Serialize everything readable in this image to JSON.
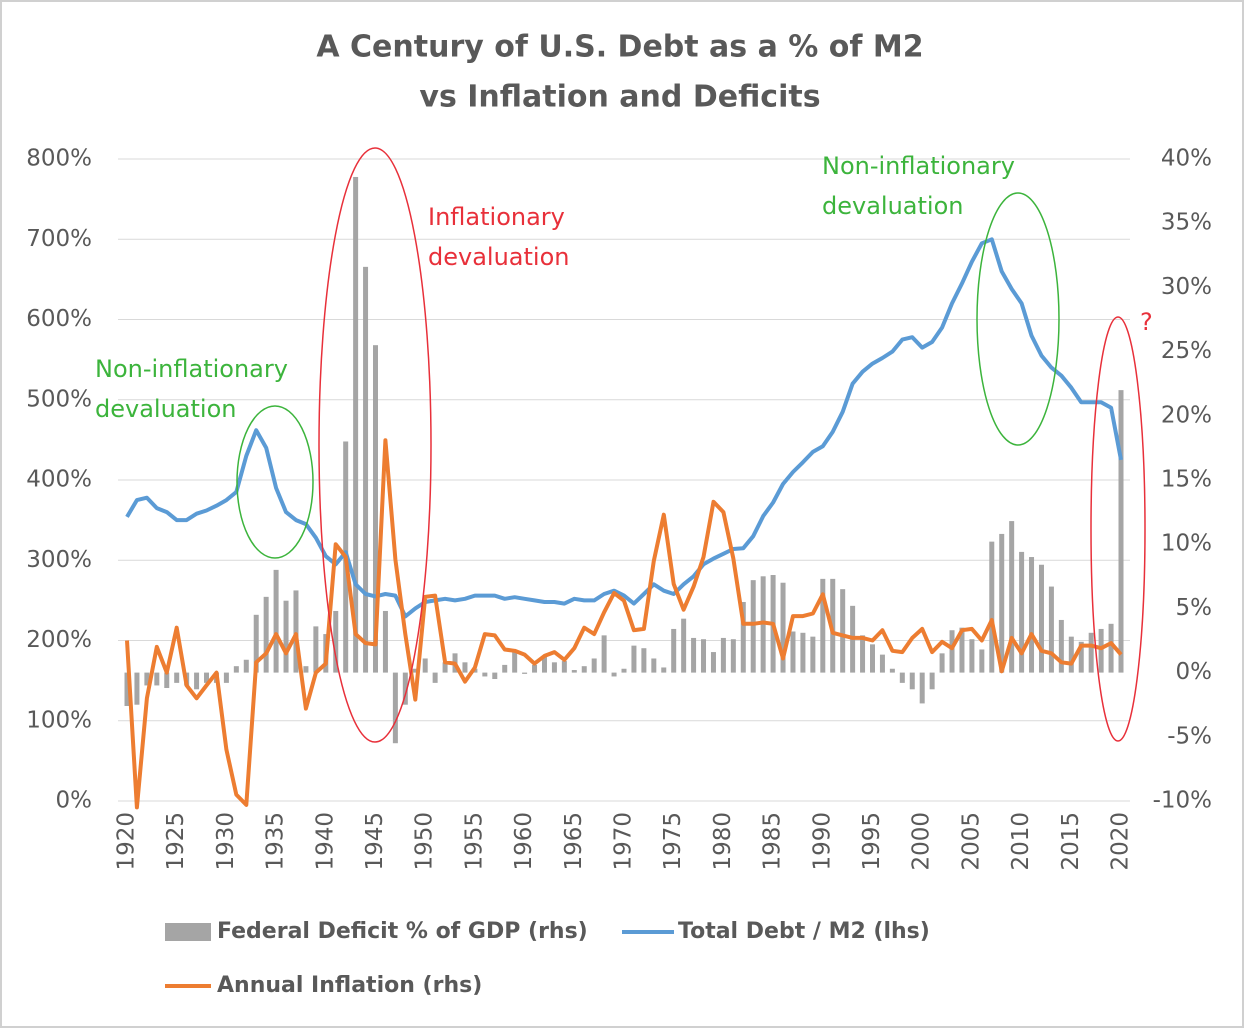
{
  "chart_data": {
    "type": "combo",
    "title": [
      "A Century of U.S. Debt as a % of M2",
      "vs Inflation and Deficits"
    ],
    "x": [
      1920,
      1921,
      1922,
      1923,
      1924,
      1925,
      1926,
      1927,
      1928,
      1929,
      1930,
      1931,
      1932,
      1933,
      1934,
      1935,
      1936,
      1937,
      1938,
      1939,
      1940,
      1941,
      1942,
      1943,
      1944,
      1945,
      1946,
      1947,
      1948,
      1949,
      1950,
      1951,
      1952,
      1953,
      1954,
      1955,
      1956,
      1957,
      1958,
      1959,
      1960,
      1961,
      1962,
      1963,
      1964,
      1965,
      1966,
      1967,
      1968,
      1969,
      1970,
      1971,
      1972,
      1973,
      1974,
      1975,
      1976,
      1977,
      1978,
      1979,
      1980,
      1981,
      1982,
      1983,
      1984,
      1985,
      1986,
      1987,
      1988,
      1989,
      1990,
      1991,
      1992,
      1993,
      1994,
      1995,
      1996,
      1997,
      1998,
      1999,
      2000,
      2001,
      2002,
      2003,
      2004,
      2005,
      2006,
      2007,
      2008,
      2009,
      2010,
      2011,
      2012,
      2013,
      2014,
      2015,
      2016,
      2017,
      2018,
      2019,
      2020
    ],
    "xlim": [
      1919,
      2021
    ],
    "xticks": [
      1920,
      1925,
      1930,
      1935,
      1940,
      1945,
      1950,
      1955,
      1960,
      1965,
      1970,
      1975,
      1980,
      1985,
      1990,
      1995,
      2000,
      2005,
      2010,
      2015,
      2020
    ],
    "ylim": [
      0,
      800
    ],
    "yticks": [
      {
        "value": 0,
        "label": "0%"
      },
      {
        "value": 100,
        "label": "100%"
      },
      {
        "value": 200,
        "label": "200%"
      },
      {
        "value": 300,
        "label": "300%"
      },
      {
        "value": 400,
        "label": "400%"
      },
      {
        "value": 500,
        "label": "500%"
      },
      {
        "value": 600,
        "label": "600%"
      },
      {
        "value": 700,
        "label": "700%"
      },
      {
        "value": 800,
        "label": "800%"
      }
    ],
    "y2lim": [
      -10,
      40
    ],
    "y2ticks": [
      {
        "value": -10,
        "label": "-10%"
      },
      {
        "value": -5,
        "label": "-5%"
      },
      {
        "value": 0,
        "label": "0%"
      },
      {
        "value": 5,
        "label": "5%"
      },
      {
        "value": 10,
        "label": "10%"
      },
      {
        "value": 15,
        "label": "15%"
      },
      {
        "value": 20,
        "label": "20%"
      },
      {
        "value": 25,
        "label": "25%"
      },
      {
        "value": 30,
        "label": "30%"
      },
      {
        "value": 35,
        "label": "35%"
      },
      {
        "value": 40,
        "label": "40%"
      }
    ],
    "grid": true,
    "legend": "bottom",
    "series": [
      {
        "name": "Federal Deficit % of GDP (rhs)",
        "kind": "bar",
        "axis": "y2",
        "color": "#a5a5a5",
        "values": [
          -2.6,
          -2.5,
          -1,
          -1,
          -1.2,
          -0.8,
          -1,
          -1.3,
          -0.8,
          -0.8,
          -0.8,
          0.5,
          1,
          4.5,
          5.9,
          8,
          5.6,
          6.4,
          0.5,
          3.6,
          3,
          4.8,
          18,
          38.6,
          31.6,
          25.5,
          4.8,
          -5.5,
          -2.5,
          0.3,
          1.1,
          -0.8,
          0.8,
          1.5,
          0.8,
          0.3,
          -0.3,
          -0.5,
          0.6,
          1.8,
          -0.1,
          0.6,
          1.3,
          0.8,
          0.9,
          0.2,
          0.5,
          1.1,
          2.9,
          -0.3,
          0.3,
          2.1,
          1.9,
          1.1,
          0.4,
          3.4,
          4.2,
          2.7,
          2.6,
          1.6,
          2.7,
          2.6,
          5.5,
          7.2,
          7.5,
          7.6,
          7,
          3.2,
          3.1,
          2.8,
          7.3,
          7.3,
          6.5,
          5.2,
          2.9,
          2.2,
          1.4,
          0.3,
          -0.8,
          -1.3,
          -2.4,
          -1.3,
          1.5,
          3.3,
          3.5,
          2.6,
          1.8,
          10.2,
          10.8,
          11.8,
          9.4,
          9,
          8.4,
          6.7,
          4.1,
          2.8,
          2.4,
          3.1,
          3.4,
          3.8,
          22
        ]
      },
      {
        "name": "Total Debt / M2 (lhs)",
        "kind": "line",
        "axis": "y",
        "color": "#5b9bd5",
        "values": [
          354,
          375,
          378,
          365,
          360,
          350,
          350,
          358,
          362,
          368,
          375,
          385,
          430,
          462,
          440,
          390,
          360,
          350,
          345,
          328,
          305,
          295,
          310,
          270,
          258,
          255,
          258,
          256,
          230,
          240,
          248,
          250,
          252,
          250,
          252,
          256,
          256,
          256,
          252,
          254,
          252,
          250,
          248,
          248,
          246,
          252,
          250,
          250,
          258,
          262,
          256,
          246,
          258,
          270,
          262,
          258,
          270,
          280,
          295,
          302,
          308,
          314,
          315,
          330,
          355,
          372,
          395,
          410,
          422,
          435,
          442,
          460,
          485,
          520,
          535,
          545,
          552,
          560,
          575,
          578,
          565,
          572,
          590,
          620,
          645,
          672,
          695,
          700,
          660,
          638,
          620,
          580,
          555,
          540,
          530,
          515,
          497,
          497,
          497,
          490,
          425
        ]
      },
      {
        "name": "Annual Inflation (rhs)",
        "kind": "line",
        "axis": "y2",
        "color": "#ed7d31",
        "values": [
          2.5,
          -10.5,
          -2,
          2,
          0,
          3.5,
          -1,
          -2,
          -1,
          0,
          -6,
          -9.5,
          -10.3,
          0.8,
          1.5,
          3,
          1.5,
          3,
          -2.8,
          0,
          0.7,
          10,
          9,
          3,
          2.3,
          2.2,
          18.1,
          8.8,
          3,
          -2.1,
          5.9,
          6,
          0.8,
          0.7,
          -0.7,
          0.4,
          3,
          2.9,
          1.8,
          1.7,
          1.4,
          0.7,
          1.3,
          1.6,
          1,
          1.9,
          3.5,
          3,
          4.7,
          6.2,
          5.6,
          3.3,
          3.4,
          8.7,
          12.3,
          6.9,
          4.9,
          6.7,
          9,
          13.3,
          12.5,
          8.9,
          3.8,
          3.8,
          3.9,
          3.8,
          1.1,
          4.4,
          4.4,
          4.6,
          6.1,
          3.1,
          2.9,
          2.7,
          2.7,
          2.5,
          3.3,
          1.7,
          1.6,
          2.7,
          3.4,
          1.6,
          2.4,
          1.9,
          3.3,
          3.4,
          2.5,
          4.1,
          0.1,
          2.7,
          1.5,
          3,
          1.7,
          1.5,
          0.8,
          0.7,
          2.1,
          2.1,
          1.9,
          2.3,
          1.4
        ]
      }
    ],
    "annotations": [
      {
        "text": [
          "Non-inflationary",
          "devaluation"
        ],
        "color": "#3cb43c"
      },
      {
        "text": [
          "Inflationary",
          "devaluation"
        ],
        "color": "#e8303a"
      },
      {
        "text": [
          "Non-inflationary",
          "devaluation"
        ],
        "color": "#3cb43c"
      },
      {
        "text": [
          "?"
        ],
        "color": "#e8303a"
      }
    ]
  }
}
